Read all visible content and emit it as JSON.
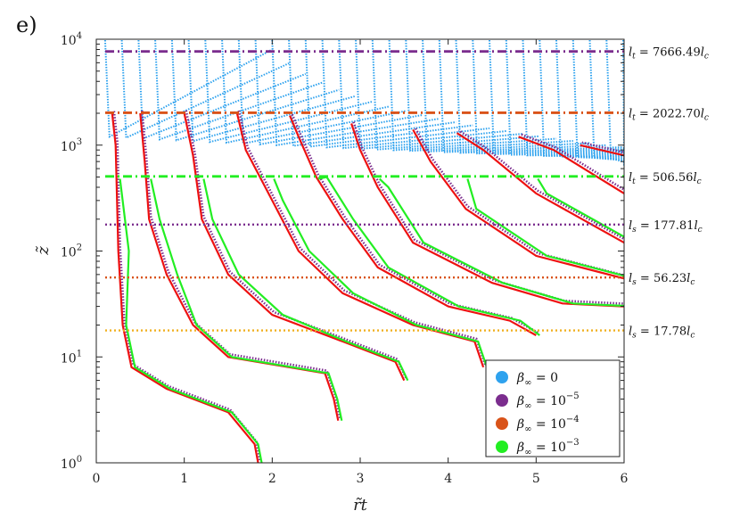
{
  "panel_label": "e)",
  "chart_data": {
    "type": "line",
    "title": "",
    "xlabel": "r̃t",
    "ylabel": "z̃",
    "xlim": [
      0,
      6
    ],
    "ylim": [
      1,
      10000
    ],
    "yscale": "log",
    "xticks": [
      "0",
      "1",
      "2",
      "3",
      "4",
      "5",
      "6"
    ],
    "yticks": [
      {
        "value": 1,
        "base": "10",
        "exp": "0"
      },
      {
        "value": 10,
        "base": "10",
        "exp": "1"
      },
      {
        "value": 100,
        "base": "10",
        "exp": "2"
      },
      {
        "value": 1000,
        "base": "10",
        "exp": "3"
      },
      {
        "value": 10000,
        "base": "10",
        "exp": "4"
      }
    ],
    "legend_position": "bottom-right",
    "series": [
      {
        "name": "β∞ = 0",
        "name_base": "β∞ = ",
        "name_exp": "",
        "name_val": "0",
        "color": "#2ea2ee"
      },
      {
        "name": "β∞ = 10−5",
        "name_base": "β∞ = 10",
        "name_exp": "−5",
        "name_val": "",
        "color": "#7b2d8e"
      },
      {
        "name": "β∞ = 10−4",
        "name_base": "β∞ = 10",
        "name_exp": "−4",
        "name_val": "",
        "color": "#d95319"
      },
      {
        "name": "β∞ = 10−3",
        "name_base": "β∞ = 10",
        "name_exp": "−3",
        "name_val": "",
        "color": "#22ee22"
      }
    ],
    "reference_lines": [
      {
        "label": "lt = 7666.49lc",
        "sym": "l",
        "sub": "t",
        "val": " = 7666.49",
        "unit": "c",
        "y": 7666.49,
        "color": "#7b2d8e",
        "style": "dashdot"
      },
      {
        "label": "lt = 2022.70lc",
        "sym": "l",
        "sub": "t",
        "val": " = 2022.70",
        "unit": "c",
        "y": 2022.7,
        "color": "#d95319",
        "style": "dashdot"
      },
      {
        "label": "lt = 506.56lc",
        "sym": "l",
        "sub": "t",
        "val": " = 506.56",
        "unit": "c",
        "y": 506.56,
        "color": "#22ee22",
        "style": "dashdot"
      },
      {
        "label": "ls = 177.81lc",
        "sym": "l",
        "sub": "s",
        "val": " = 177.81",
        "unit": "c",
        "y": 177.81,
        "color": "#7b2d8e",
        "style": "dotted"
      },
      {
        "label": "ls = 56.23lc",
        "sym": "l",
        "sub": "s",
        "val": " = 56.23",
        "unit": "c",
        "y": 56.23,
        "color": "#d95319",
        "style": "dotted"
      },
      {
        "label": "ls = 17.78lc",
        "sym": "l",
        "sub": "s",
        "val": " = 17.78",
        "unit": "c",
        "y": 17.78,
        "color": "#f0b020",
        "style": "dotted"
      }
    ],
    "curves_red": [
      [
        [
          1.84,
          1
        ],
        [
          1.8,
          1.5
        ],
        [
          1.5,
          3
        ],
        [
          0.8,
          5
        ],
        [
          0.4,
          8
        ],
        [
          0.3,
          20
        ],
        [
          0.25,
          100
        ],
        [
          0.22,
          1000
        ],
        [
          0.18,
          2000
        ]
      ],
      [
        [
          2.75,
          2.5
        ],
        [
          2.7,
          4
        ],
        [
          2.6,
          7
        ],
        [
          1.5,
          10
        ],
        [
          1.1,
          20
        ],
        [
          0.8,
          60
        ],
        [
          0.6,
          200
        ],
        [
          0.55,
          700
        ],
        [
          0.5,
          2000
        ]
      ],
      [
        [
          3.5,
          6
        ],
        [
          3.4,
          9
        ],
        [
          2.8,
          14
        ],
        [
          2.0,
          25
        ],
        [
          1.5,
          60
        ],
        [
          1.2,
          200
        ],
        [
          1.1,
          800
        ],
        [
          1.0,
          2000
        ]
      ],
      [
        [
          4.4,
          8
        ],
        [
          4.3,
          14
        ],
        [
          3.6,
          20
        ],
        [
          2.8,
          40
        ],
        [
          2.3,
          100
        ],
        [
          2.0,
          300
        ],
        [
          1.7,
          900
        ],
        [
          1.6,
          2000
        ]
      ],
      [
        [
          5.0,
          16
        ],
        [
          4.7,
          22
        ],
        [
          4.0,
          30
        ],
        [
          3.2,
          70
        ],
        [
          2.8,
          200
        ],
        [
          2.5,
          500
        ],
        [
          2.3,
          1200
        ],
        [
          2.2,
          1900
        ]
      ],
      [
        [
          6.0,
          30
        ],
        [
          5.3,
          32
        ],
        [
          4.5,
          50
        ],
        [
          3.6,
          120
        ],
        [
          3.2,
          400
        ],
        [
          3.0,
          900
        ],
        [
          2.9,
          1600
        ]
      ],
      [
        [
          6.0,
          55
        ],
        [
          5.0,
          90
        ],
        [
          4.2,
          250
        ],
        [
          3.8,
          700
        ],
        [
          3.6,
          1400
        ]
      ],
      [
        [
          6.0,
          120
        ],
        [
          5.0,
          350
        ],
        [
          4.4,
          900
        ],
        [
          4.1,
          1300
        ]
      ],
      [
        [
          6.0,
          350
        ],
        [
          5.2,
          900
        ],
        [
          4.8,
          1200
        ]
      ],
      [
        [
          6.0,
          800
        ],
        [
          5.5,
          1000
        ]
      ]
    ]
  }
}
